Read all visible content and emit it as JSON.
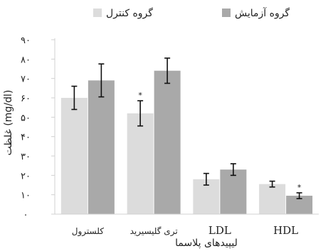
{
  "chart_data": {
    "type": "bar",
    "categories": [
      "کلسترول",
      "تری گلیسیرید",
      "LDL",
      "HDL"
    ],
    "series": [
      {
        "name": "گروه کنترل",
        "color": "#dcdcdc",
        "values": [
          60,
          52,
          18,
          15.5
        ],
        "errors": [
          6,
          6.5,
          3,
          1.5
        ],
        "significance": [
          "",
          "*",
          "",
          ""
        ]
      },
      {
        "name": "گروه آزمایش",
        "color": "#a9a9a9",
        "values": [
          69,
          74,
          23,
          9.5
        ],
        "errors": [
          8.5,
          6.5,
          3,
          1.5
        ],
        "significance": [
          "",
          "",
          "",
          "*"
        ]
      }
    ],
    "ylim": [
      0,
      90
    ],
    "yticks": [
      "۰",
      "۱۰",
      "۲۰",
      "۳۰",
      "۴۰",
      "۵۰",
      "۶۰",
      "۷۰",
      "۸۰",
      "۹۰"
    ],
    "xlabel": "لیپیدهای پلاسما",
    "ylabel": "غلظت (mg/dl)",
    "legend_position": "top",
    "grid": false
  }
}
